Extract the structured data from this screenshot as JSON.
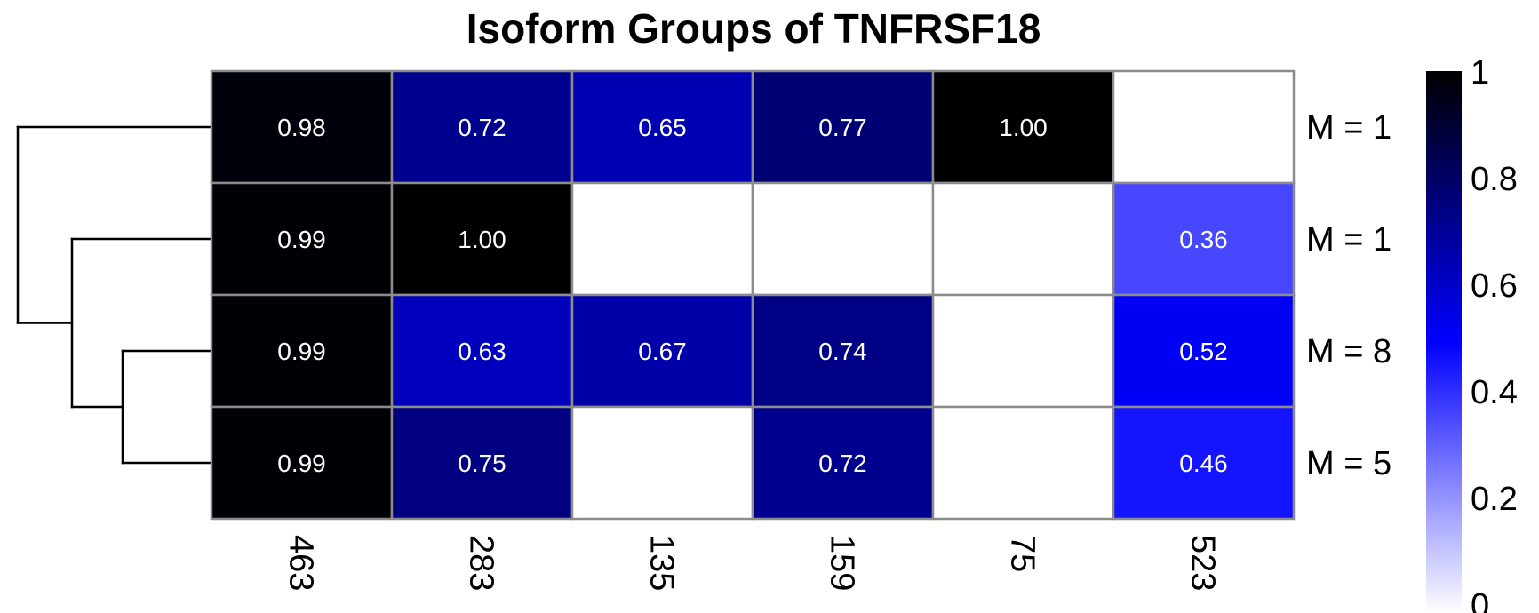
{
  "chart_data": {
    "type": "heatmap",
    "title": "Isoform Groups of TNFRSF18",
    "columns": [
      "463",
      "283",
      "135",
      "159",
      "75",
      "523"
    ],
    "rows": [
      "M = 1",
      "M = 1",
      "M = 8",
      "M = 5"
    ],
    "values": [
      [
        0.98,
        0.72,
        0.65,
        0.77,
        1.0,
        null
      ],
      [
        0.99,
        1.0,
        null,
        null,
        null,
        0.36
      ],
      [
        0.99,
        0.63,
        0.67,
        0.74,
        null,
        0.52
      ],
      [
        0.99,
        0.75,
        null,
        0.72,
        null,
        0.46
      ]
    ],
    "value_labels": [
      [
        "0.98",
        "0.72",
        "0.65",
        "0.77",
        "1.00",
        ""
      ],
      [
        "0.99",
        "1.00",
        "",
        "",
        "",
        "0.36"
      ],
      [
        "0.99",
        "0.63",
        "0.67",
        "0.74",
        "",
        "0.52"
      ],
      [
        "0.99",
        "0.75",
        "",
        "0.72",
        "",
        "0.46"
      ]
    ],
    "color_scale": {
      "min": 0,
      "max": 1,
      "ticks": [
        "0",
        "0.2",
        "0.4",
        "0.6",
        "0.8",
        "1"
      ],
      "tick_values": [
        0,
        0.2,
        0.4,
        0.6,
        0.8,
        1
      ],
      "colors": [
        "#ffffff",
        "#0000ff",
        "#000000"
      ]
    },
    "row_dendrogram": "(M = 1, (M = 1, (M = 8, M = 5)))",
    "grid_color": "#8c8c8c"
  }
}
